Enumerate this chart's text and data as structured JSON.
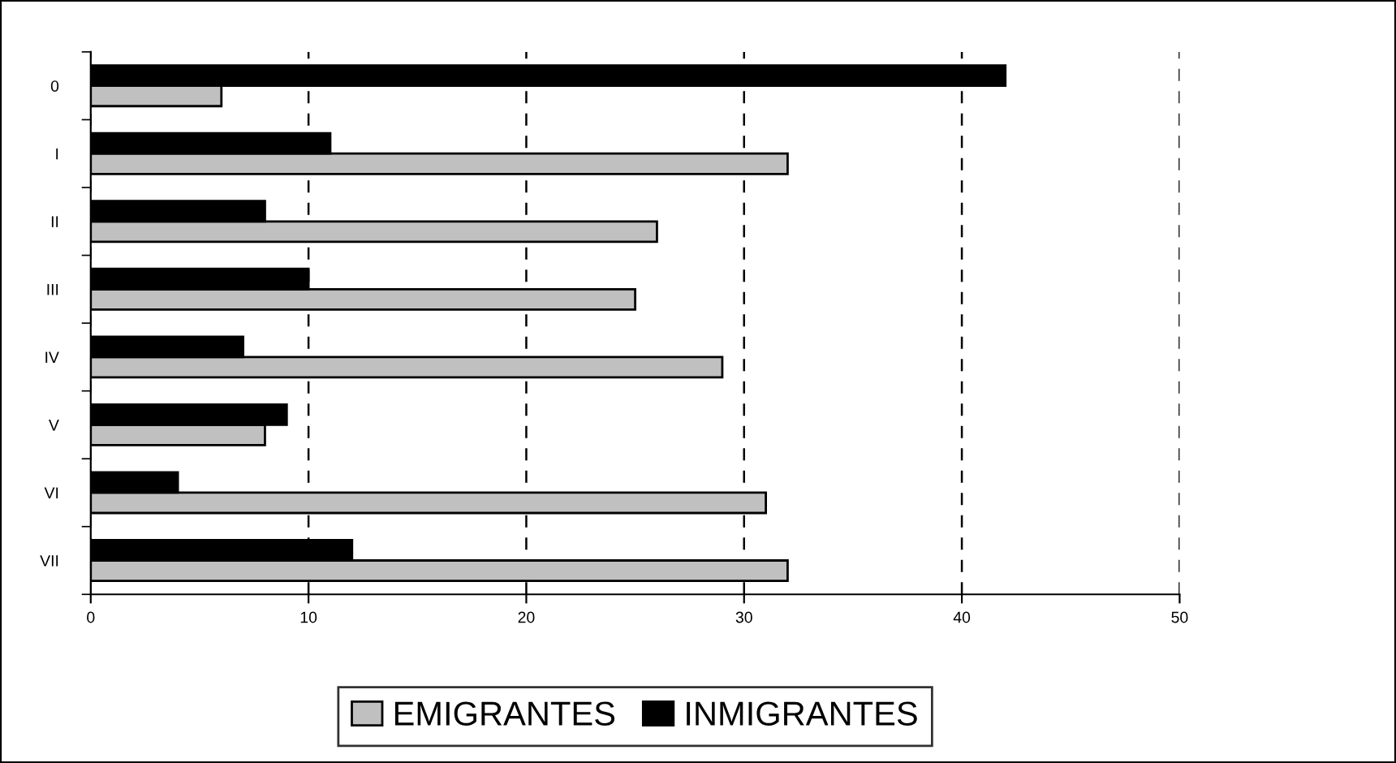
{
  "chart_data": {
    "type": "bar",
    "orientation": "horizontal",
    "categories": [
      "0",
      "I",
      "II",
      "III",
      "IV",
      "V",
      "VI",
      "VII"
    ],
    "series": [
      {
        "name": "EMIGRANTES",
        "color": "#c0c0c0",
        "values": [
          6,
          32,
          26,
          25,
          29,
          8,
          31,
          32
        ]
      },
      {
        "name": "INMIGRANTES",
        "color": "#000000",
        "values": [
          42,
          11,
          8,
          10,
          7,
          9,
          4,
          12
        ]
      }
    ],
    "xlim": [
      0,
      50
    ],
    "xticks": [
      0,
      10,
      20,
      30,
      40,
      50
    ],
    "grid": "x",
    "legend": "bottom"
  }
}
